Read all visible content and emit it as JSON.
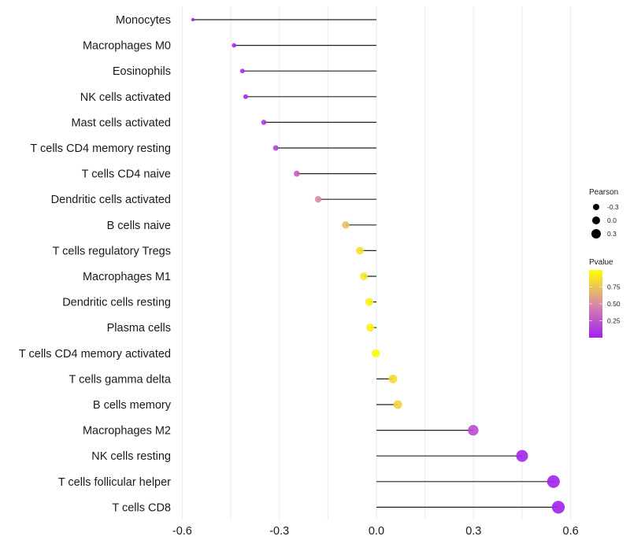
{
  "chart_data": {
    "type": "lollipop",
    "title": "",
    "xlabel": "",
    "ylabel": "",
    "xlim": [
      -0.62,
      0.62
    ],
    "x_ticks": [
      -0.6,
      -0.3,
      0.0,
      0.3,
      0.6
    ],
    "x_tick_labels": [
      "-0.6",
      "-0.3",
      "0.0",
      "0.3",
      "0.6"
    ],
    "grid": true,
    "categories": [
      "Monocytes",
      "Macrophages M0",
      "Eosinophils",
      "NK cells activated",
      "Mast cells activated",
      "T cells CD4 memory resting",
      "T cells CD4 naive",
      "Dendritic cells activated",
      "B cells naive",
      "T cells regulatory  Tregs ",
      "Macrophages M1",
      "Dendritic cells resting",
      "Plasma cells",
      "T cells CD4 memory activated",
      "T cells gamma delta",
      "B cells memory",
      "Macrophages M2",
      "NK cells resting",
      "T cells follicular helper",
      "T cells CD8"
    ],
    "values": [
      -0.567,
      -0.44,
      -0.414,
      -0.404,
      -0.348,
      -0.311,
      -0.246,
      -0.18,
      -0.095,
      -0.051,
      -0.039,
      -0.022,
      -0.019,
      -0.002,
      0.051,
      0.066,
      0.299,
      0.45,
      0.547,
      0.562
    ],
    "pvalues": [
      0.01,
      0.05,
      0.06,
      0.07,
      0.12,
      0.17,
      0.3,
      0.5,
      0.72,
      0.86,
      0.9,
      0.93,
      0.94,
      0.99,
      0.85,
      0.81,
      0.2,
      0.03,
      0.01,
      0.01
    ],
    "legend": {
      "size": {
        "title": "Pearson",
        "labels": [
          "-0.3",
          "0.0",
          "0.3"
        ],
        "values": [
          -0.3,
          0.0,
          0.3
        ]
      },
      "color": {
        "title": "Pvalue",
        "labels": [
          "0.75",
          "0.50",
          "0.25"
        ],
        "values": [
          0.75,
          0.5,
          0.25
        ],
        "range": [
          0.0,
          1.0
        ],
        "low_color": "#A020F0",
        "high_color": "#FFFF00"
      },
      "placement": "right"
    }
  }
}
